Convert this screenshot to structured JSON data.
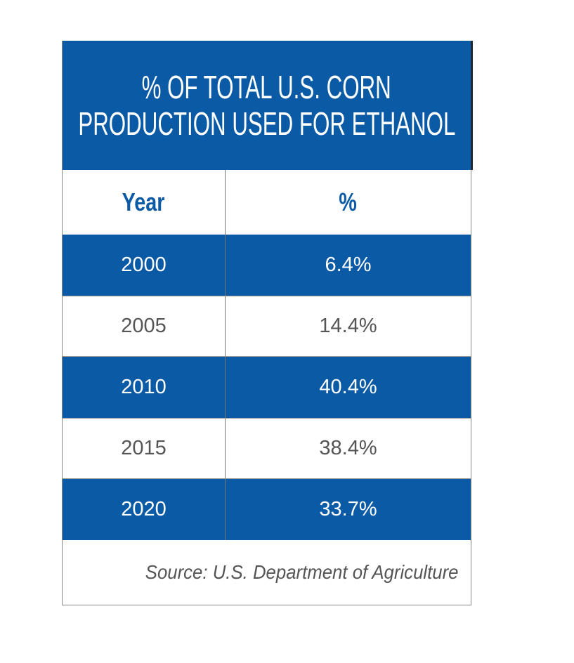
{
  "header": {
    "title_lines": [
      "% OF TOTAL U.S. CORN",
      "PRODUCTION USED FOR ETHANOL"
    ]
  },
  "table": {
    "columns": [
      "Year",
      "%"
    ],
    "rows": [
      [
        "2000",
        "6.4%"
      ],
      [
        "2005",
        "14.4%"
      ],
      [
        "2010",
        "40.4%"
      ],
      [
        "2015",
        "38.4%"
      ],
      [
        "2020",
        "33.7%"
      ]
    ]
  },
  "footer": {
    "source": "Source: U.S. Department of Agriculture"
  }
}
